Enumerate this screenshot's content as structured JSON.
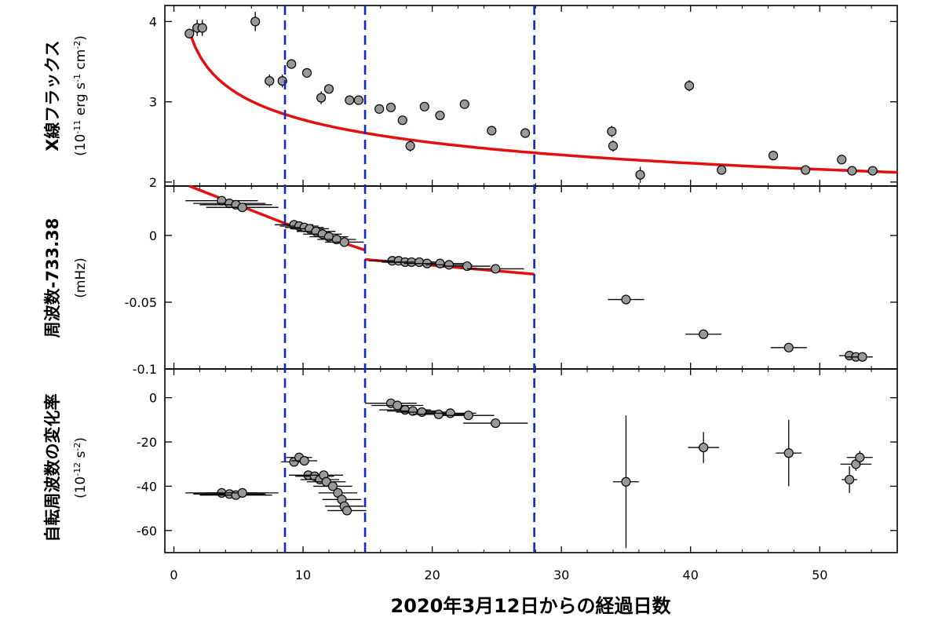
{
  "chart_data": {
    "type": "scatter",
    "xlabel": "2020年3月12日からの経過日数",
    "xlim": [
      -0.7,
      56
    ],
    "x_ticks": [
      0,
      10,
      20,
      30,
      40,
      50
    ],
    "x_tick_labels": [
      "0",
      "10",
      "20",
      "30",
      "40",
      "50"
    ],
    "vertical_dashed_lines": {
      "color": "#1428c8",
      "x": [
        8.6,
        14.8,
        27.9
      ]
    },
    "point_color": "#999999",
    "fit_color": "#e21010",
    "panels": [
      {
        "id": "flux",
        "ylabel_main": "X線フラックス",
        "ylabel_unit_pre": "(10",
        "ylabel_unit_exp1": "-11",
        "ylabel_unit_mid1": " erg s",
        "ylabel_unit_exp2": "-1",
        "ylabel_unit_mid2": " cm",
        "ylabel_unit_exp3": "-2",
        "ylabel_unit_post": ")",
        "ylim": [
          1.95,
          4.2
        ],
        "y_ticks": [
          2,
          3,
          4
        ],
        "y_tick_labels": [
          "2",
          "3",
          "4"
        ],
        "fit": {
          "model": "power_law",
          "x": [
            1.2,
            56
          ],
          "y": [
            3.87,
            2.12
          ]
        },
        "points": [
          {
            "x": 1.2,
            "y": 3.85,
            "yerr": 0.06
          },
          {
            "x": 1.8,
            "y": 3.92,
            "yerr": 0.1
          },
          {
            "x": 2.2,
            "y": 3.92,
            "yerr": 0.1
          },
          {
            "x": 6.3,
            "y": 4.0,
            "yerr": 0.12
          },
          {
            "x": 7.4,
            "y": 3.26,
            "yerr": 0.08
          },
          {
            "x": 8.4,
            "y": 3.26,
            "yerr": 0.08
          },
          {
            "x": 9.1,
            "y": 3.47,
            "yerr": 0.05
          },
          {
            "x": 10.3,
            "y": 3.36,
            "yerr": 0.05
          },
          {
            "x": 11.4,
            "y": 3.05,
            "yerr": 0.08
          },
          {
            "x": 12.0,
            "y": 3.16,
            "yerr": 0.05
          },
          {
            "x": 13.6,
            "y": 3.02,
            "yerr": 0.05
          },
          {
            "x": 14.3,
            "y": 3.02,
            "yerr": 0.05
          },
          {
            "x": 15.9,
            "y": 2.91,
            "yerr": 0.05
          },
          {
            "x": 16.8,
            "y": 2.93,
            "yerr": 0.05
          },
          {
            "x": 17.7,
            "y": 2.77,
            "yerr": 0.05
          },
          {
            "x": 18.3,
            "y": 2.45,
            "yerr": 0.07
          },
          {
            "x": 19.4,
            "y": 2.94,
            "yerr": 0.05
          },
          {
            "x": 20.6,
            "y": 2.83,
            "yerr": 0.05
          },
          {
            "x": 22.5,
            "y": 2.97,
            "yerr": 0.04
          },
          {
            "x": 24.6,
            "y": 2.64,
            "yerr": 0.04
          },
          {
            "x": 27.2,
            "y": 2.61,
            "yerr": 0.04
          },
          {
            "x": 33.9,
            "y": 2.63,
            "yerr": 0.07
          },
          {
            "x": 34.0,
            "y": 2.45,
            "yerr": 0.07
          },
          {
            "x": 36.1,
            "y": 2.09,
            "yerr": 0.1
          },
          {
            "x": 39.9,
            "y": 3.2,
            "yerr": 0.07
          },
          {
            "x": 42.4,
            "y": 2.15,
            "yerr": 0.04
          },
          {
            "x": 46.4,
            "y": 2.33,
            "yerr": 0.04
          },
          {
            "x": 48.9,
            "y": 2.15,
            "yerr": 0.04
          },
          {
            "x": 51.7,
            "y": 2.28,
            "yerr": 0.04
          },
          {
            "x": 52.5,
            "y": 2.14,
            "yerr": 0.04
          },
          {
            "x": 54.1,
            "y": 2.14,
            "yerr": 0.04
          }
        ]
      },
      {
        "id": "freq",
        "ylabel_main": "周波数-733.38",
        "ylabel_unit": "(mHz)",
        "ylim": [
          -0.1,
          0.037
        ],
        "y_ticks": [
          0,
          -0.05,
          -0.1
        ],
        "y_tick_labels": [
          "0",
          "-0.05",
          "-0.1"
        ],
        "fit_segments": [
          {
            "x": [
              1.2,
              8.6
            ],
            "y": [
              0.037,
              0.009
            ]
          },
          {
            "x": [
              8.6,
              14.8
            ],
            "y": [
              0.009,
              -0.011
            ]
          },
          {
            "x": [
              14.8,
              27.9
            ],
            "y": [
              -0.018,
              -0.029
            ]
          }
        ],
        "points": [
          {
            "x": 3.7,
            "y": 0.026,
            "xerr": 2.8
          },
          {
            "x": 4.3,
            "y": 0.024,
            "xerr": 2.8
          },
          {
            "x": 4.8,
            "y": 0.023,
            "xerr": 2.8
          },
          {
            "x": 5.3,
            "y": 0.021,
            "xerr": 2.8
          },
          {
            "x": 9.3,
            "y": 0.008,
            "xerr": 1.5
          },
          {
            "x": 9.7,
            "y": 0.007,
            "xerr": 1.5
          },
          {
            "x": 10.1,
            "y": 0.006,
            "xerr": 1.5
          },
          {
            "x": 10.5,
            "y": 0.005,
            "xerr": 1.5
          },
          {
            "x": 11.0,
            "y": 0.003,
            "xerr": 1.5
          },
          {
            "x": 11.5,
            "y": 0.001,
            "xerr": 1.5
          },
          {
            "x": 12.0,
            "y": -0.001,
            "xerr": 1.5
          },
          {
            "x": 12.6,
            "y": -0.003,
            "xerr": 1.5
          },
          {
            "x": 13.2,
            "y": -0.005,
            "xerr": 1.5
          },
          {
            "x": 16.9,
            "y": -0.019,
            "xerr": 1.8
          },
          {
            "x": 17.4,
            "y": -0.019,
            "xerr": 1.8
          },
          {
            "x": 17.9,
            "y": -0.02,
            "xerr": 1.8
          },
          {
            "x": 18.4,
            "y": -0.02,
            "xerr": 1.8
          },
          {
            "x": 19.0,
            "y": -0.02,
            "xerr": 1.8
          },
          {
            "x": 19.6,
            "y": -0.021,
            "xerr": 1.8
          },
          {
            "x": 20.6,
            "y": -0.021,
            "xerr": 1.8
          },
          {
            "x": 21.3,
            "y": -0.022,
            "xerr": 1.8
          },
          {
            "x": 22.7,
            "y": -0.023,
            "xerr": 1.8
          },
          {
            "x": 24.9,
            "y": -0.025,
            "xerr": 2.2
          },
          {
            "x": 35.0,
            "y": -0.048,
            "xerr": 1.4
          },
          {
            "x": 41.0,
            "y": -0.074,
            "xerr": 1.4
          },
          {
            "x": 47.6,
            "y": -0.084,
            "xerr": 1.4
          },
          {
            "x": 52.3,
            "y": -0.09,
            "xerr": 0.8
          },
          {
            "x": 52.8,
            "y": -0.091,
            "xerr": 0.8
          },
          {
            "x": 53.3,
            "y": -0.091,
            "xerr": 0.8
          }
        ]
      },
      {
        "id": "fdot",
        "ylabel_main": "自転周波数の変化率",
        "ylabel_unit_pre": "(10",
        "ylabel_unit_exp1": "-12",
        "ylabel_unit_mid1": " s",
        "ylabel_unit_exp2": "-2",
        "ylabel_unit_post": ")",
        "ylim": [
          -70,
          13
        ],
        "y_ticks": [
          0,
          -20,
          -40,
          -60
        ],
        "y_tick_labels": [
          "0",
          "-20",
          "-40",
          "-60"
        ],
        "points": [
          {
            "x": 3.7,
            "y": -43,
            "xerr": 2.8
          },
          {
            "x": 4.3,
            "y": -43.5,
            "xerr": 2.8
          },
          {
            "x": 4.8,
            "y": -44,
            "xerr": 2.8
          },
          {
            "x": 5.3,
            "y": -43,
            "xerr": 2.8
          },
          {
            "x": 9.3,
            "y": -29,
            "xerr": 1.0
          },
          {
            "x": 9.7,
            "y": -27,
            "xerr": 1.0
          },
          {
            "x": 10.1,
            "y": -28.5,
            "xerr": 1.0
          },
          {
            "x": 10.4,
            "y": -35,
            "xerr": 1.5
          },
          {
            "x": 10.9,
            "y": -35.5,
            "xerr": 1.5
          },
          {
            "x": 11.3,
            "y": -37,
            "xerr": 1.5
          },
          {
            "x": 11.6,
            "y": -35,
            "xerr": 1.5
          },
          {
            "x": 11.8,
            "y": -38,
            "xerr": 1.5
          },
          {
            "x": 12.3,
            "y": -40,
            "xerr": 1.5
          },
          {
            "x": 12.7,
            "y": -43,
            "xerr": 1.5
          },
          {
            "x": 13.0,
            "y": -46,
            "xerr": 1.5
          },
          {
            "x": 13.2,
            "y": -49,
            "xerr": 1.5
          },
          {
            "x": 13.4,
            "y": -51,
            "xerr": 1.5
          },
          {
            "x": 16.8,
            "y": -2.5,
            "xerr": 2.0
          },
          {
            "x": 17.3,
            "y": -3.5,
            "xerr": 2.0
          },
          {
            "x": 17.9,
            "y": -5.5,
            "xerr": 2.0
          },
          {
            "x": 18.5,
            "y": -6,
            "xerr": 2.0
          },
          {
            "x": 19.2,
            "y": -6.5,
            "xerr": 2.0
          },
          {
            "x": 20.5,
            "y": -7.5,
            "xerr": 2.0
          },
          {
            "x": 21.4,
            "y": -7,
            "xerr": 2.0
          },
          {
            "x": 22.8,
            "y": -8,
            "xerr": 2.0
          },
          {
            "x": 24.9,
            "y": -11.5,
            "xerr": 2.5
          },
          {
            "x": 35.0,
            "y": -38,
            "xerr": 1.0,
            "yerr": 30
          },
          {
            "x": 41.0,
            "y": -22.5,
            "xerr": 1.2,
            "yerr": 7
          },
          {
            "x": 47.6,
            "y": -25,
            "xerr": 1.0,
            "yerr": 15
          },
          {
            "x": 52.3,
            "y": -37,
            "xerr": 0.6,
            "yerr": 6
          },
          {
            "x": 52.8,
            "y": -30,
            "xerr": 1.2,
            "yerr": 3
          },
          {
            "x": 53.1,
            "y": -27,
            "xerr": 1.0,
            "yerr": 3
          }
        ]
      }
    ]
  }
}
